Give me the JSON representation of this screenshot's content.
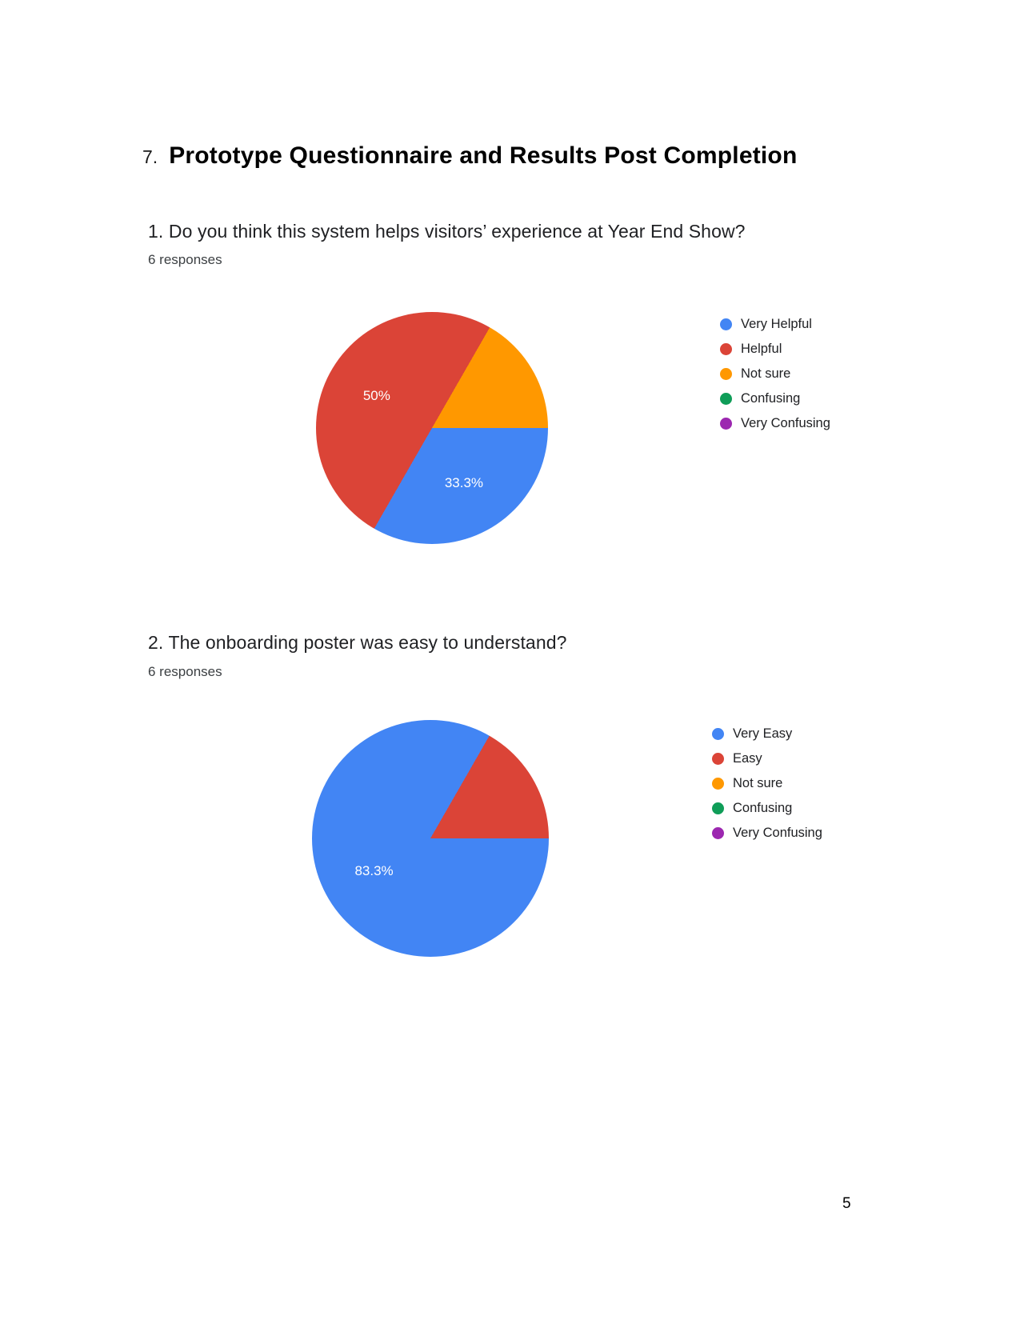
{
  "page": {
    "heading_number": "7.",
    "heading_title": "Prototype Questionnaire and Results Post Completion",
    "number": "5"
  },
  "chart_data": [
    {
      "type": "pie",
      "title": "1. Do you think this system helps visitors’ experience at Year End Show?",
      "subtitle": "6 responses",
      "legend_position": "right",
      "start_angle_deg": 90,
      "categories": [
        "Very Helpful",
        "Helpful",
        "Not sure",
        "Confusing",
        "Very Confusing"
      ],
      "values": [
        33.3,
        50,
        16.7,
        0,
        0
      ],
      "colors": [
        "#4285f4",
        "#db4437",
        "#ff9800",
        "#0f9d58",
        "#9c27b0"
      ],
      "slice_labels": [
        "33.3%",
        "50%",
        "",
        "",
        ""
      ]
    },
    {
      "type": "pie",
      "title": "2. The onboarding poster was easy to understand?",
      "subtitle": "6 responses",
      "legend_position": "right",
      "start_angle_deg": 90,
      "categories": [
        "Very Easy",
        "Easy",
        "Not sure",
        "Confusing",
        "Very Confusing"
      ],
      "values": [
        83.3,
        16.7,
        0,
        0,
        0
      ],
      "colors": [
        "#4285f4",
        "#db4437",
        "#ff9800",
        "#0f9d58",
        "#9c27b0"
      ],
      "slice_labels": [
        "83.3%",
        "",
        "",
        "",
        ""
      ]
    }
  ]
}
